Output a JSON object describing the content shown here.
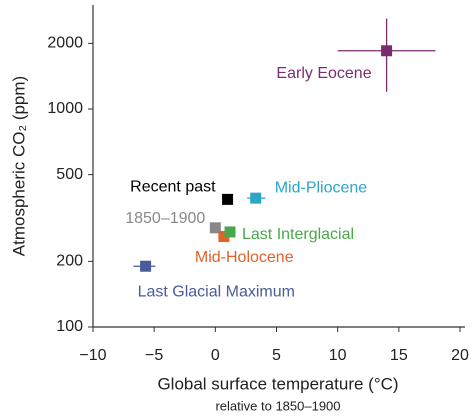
{
  "chart_data": {
    "type": "scatter",
    "xlabel": "Global surface temperature (°C)",
    "xlabel_sub": "relative to 1850–1900",
    "ylabel": "Atmospheric CO₂ (ppm)",
    "log_y": true,
    "xlim": [
      -10,
      20
    ],
    "ylim": [
      100,
      3000
    ],
    "xticks": [
      {
        "value": -10,
        "label": "−10"
      },
      {
        "value": -5,
        "label": "−5"
      },
      0,
      5,
      10,
      15,
      20
    ],
    "yticks": [
      100,
      200,
      500,
      1000,
      2000
    ],
    "points": [
      {
        "label": "Early Eocene",
        "x": 14,
        "y": 1850,
        "color": "#7b2c6f",
        "x_low": 10,
        "x_high": 18,
        "y_low": 1200,
        "y_high": 2600
      },
      {
        "label": "Mid-Pliocene",
        "x": 3.3,
        "y": 390,
        "color": "#2ba6c9",
        "x_low": 2.6,
        "x_high": 4.1
      },
      {
        "label": "Recent past",
        "x": 1,
        "y": 385,
        "color": "#000000"
      },
      {
        "label": "1850–1900",
        "x": 0,
        "y": 285,
        "color": "#888888"
      },
      {
        "label": "Mid-Holocene",
        "x": 0.7,
        "y": 260,
        "color": "#e0632a"
      },
      {
        "label": "Last Interglacial",
        "x": 1.2,
        "y": 273,
        "color": "#4aa84a"
      },
      {
        "label": "Last Glacial Maximum",
        "x": -5.7,
        "y": 190,
        "color": "#4a5b9a",
        "x_low": -6.7,
        "x_high": -4.9
      }
    ]
  }
}
